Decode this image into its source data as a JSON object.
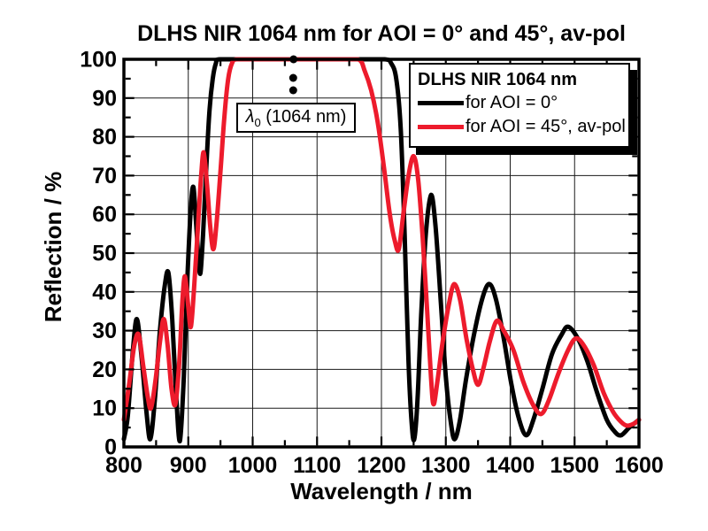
{
  "chart_data": {
    "type": "line",
    "title": "DLHS NIR 1064 nm for AOI = 0° and 45°, av-pol",
    "xlabel": "Wavelength / nm",
    "ylabel": "Reflection / %",
    "xlim": [
      800,
      1600
    ],
    "ylim": [
      0,
      100
    ],
    "xticks": [
      800,
      900,
      1000,
      1100,
      1200,
      1300,
      1400,
      1500,
      1600
    ],
    "yticks": [
      0,
      10,
      20,
      30,
      40,
      50,
      60,
      70,
      80,
      90,
      100
    ],
    "grid": true,
    "legend": {
      "title": "DLHS NIR 1064 nm",
      "position": "top-right",
      "entries": [
        {
          "label": "for AOI = 0°",
          "color": "#000000"
        },
        {
          "label": "for AOI = 45°, av-pol",
          "color": "#ed1b2c"
        }
      ]
    },
    "annotation": {
      "symbol": "λ",
      "subscript": "0",
      "text": " (1064 nm)",
      "center_wavelength_nm": 1064,
      "dots": [
        [
          1063.5,
          100
        ],
        [
          1063,
          95.2
        ],
        [
          1063,
          92.0
        ]
      ]
    },
    "series": [
      {
        "name": "for AOI = 0°",
        "color": "#000000",
        "points": [
          [
            800,
            2
          ],
          [
            806,
            8
          ],
          [
            814,
            25
          ],
          [
            820,
            33
          ],
          [
            827,
            24
          ],
          [
            835,
            9
          ],
          [
            841,
            2
          ],
          [
            848,
            12
          ],
          [
            856,
            30
          ],
          [
            863,
            41
          ],
          [
            869,
            45
          ],
          [
            875,
            33
          ],
          [
            881,
            14
          ],
          [
            887,
            1.5
          ],
          [
            893,
            18
          ],
          [
            899,
            45
          ],
          [
            904,
            62
          ],
          [
            908,
            67
          ],
          [
            912,
            58
          ],
          [
            916,
            48
          ],
          [
            919,
            45
          ],
          [
            923,
            55
          ],
          [
            928,
            72
          ],
          [
            933,
            87
          ],
          [
            938,
            95
          ],
          [
            943,
            99
          ],
          [
            949,
            100
          ],
          [
            1000,
            100
          ],
          [
            1080,
            100
          ],
          [
            1160,
            100
          ],
          [
            1205,
            100
          ],
          [
            1215,
            99
          ],
          [
            1223,
            95
          ],
          [
            1230,
            82
          ],
          [
            1236,
            55
          ],
          [
            1242,
            22
          ],
          [
            1247,
            6
          ],
          [
            1251,
            2
          ],
          [
            1256,
            12
          ],
          [
            1262,
            35
          ],
          [
            1269,
            55
          ],
          [
            1277,
            65
          ],
          [
            1284,
            57
          ],
          [
            1292,
            38
          ],
          [
            1300,
            18
          ],
          [
            1308,
            6
          ],
          [
            1314,
            2
          ],
          [
            1322,
            7
          ],
          [
            1332,
            18
          ],
          [
            1345,
            30
          ],
          [
            1358,
            39
          ],
          [
            1368,
            42
          ],
          [
            1378,
            38
          ],
          [
            1390,
            28
          ],
          [
            1402,
            16
          ],
          [
            1414,
            7
          ],
          [
            1425,
            3
          ],
          [
            1436,
            7
          ],
          [
            1450,
            15
          ],
          [
            1465,
            24
          ],
          [
            1480,
            29
          ],
          [
            1490,
            31
          ],
          [
            1505,
            28
          ],
          [
            1520,
            22
          ],
          [
            1535,
            14
          ],
          [
            1550,
            7
          ],
          [
            1562,
            4
          ],
          [
            1572,
            3
          ],
          [
            1585,
            5
          ],
          [
            1600,
            7
          ]
        ]
      },
      {
        "name": "for AOI = 45°, av-pol",
        "color": "#ed1b2c",
        "points": [
          [
            800,
            7
          ],
          [
            808,
            16
          ],
          [
            816,
            26
          ],
          [
            823,
            29
          ],
          [
            830,
            21
          ],
          [
            837,
            13
          ],
          [
            842,
            10
          ],
          [
            849,
            17
          ],
          [
            856,
            27
          ],
          [
            862,
            33
          ],
          [
            868,
            26
          ],
          [
            874,
            15
          ],
          [
            880,
            11
          ],
          [
            886,
            22
          ],
          [
            891,
            38
          ],
          [
            895,
            44
          ],
          [
            900,
            36
          ],
          [
            904,
            31
          ],
          [
            909,
            41
          ],
          [
            915,
            57
          ],
          [
            920,
            70
          ],
          [
            924,
            76
          ],
          [
            929,
            68
          ],
          [
            934,
            57
          ],
          [
            939,
            51
          ],
          [
            944,
            58
          ],
          [
            950,
            71
          ],
          [
            956,
            85
          ],
          [
            962,
            95
          ],
          [
            968,
            99
          ],
          [
            975,
            100
          ],
          [
            1000,
            100
          ],
          [
            1080,
            100
          ],
          [
            1130,
            100
          ],
          [
            1164,
            100
          ],
          [
            1174,
            97
          ],
          [
            1184,
            92
          ],
          [
            1194,
            84
          ],
          [
            1204,
            72
          ],
          [
            1213,
            60
          ],
          [
            1221,
            53
          ],
          [
            1227,
            51
          ],
          [
            1234,
            60
          ],
          [
            1242,
            70
          ],
          [
            1250,
            75
          ],
          [
            1257,
            69
          ],
          [
            1264,
            54
          ],
          [
            1271,
            35
          ],
          [
            1277,
            18
          ],
          [
            1281,
            11
          ],
          [
            1287,
            17
          ],
          [
            1295,
            27
          ],
          [
            1305,
            37
          ],
          [
            1313,
            42
          ],
          [
            1322,
            38
          ],
          [
            1332,
            28
          ],
          [
            1342,
            20
          ],
          [
            1350,
            16
          ],
          [
            1358,
            20
          ],
          [
            1368,
            27
          ],
          [
            1379,
            32.5
          ],
          [
            1390,
            30
          ],
          [
            1405,
            25
          ],
          [
            1420,
            17
          ],
          [
            1435,
            11
          ],
          [
            1448,
            8.5
          ],
          [
            1460,
            12
          ],
          [
            1475,
            19
          ],
          [
            1490,
            25
          ],
          [
            1502,
            28
          ],
          [
            1515,
            26
          ],
          [
            1530,
            21
          ],
          [
            1545,
            14
          ],
          [
            1560,
            9
          ],
          [
            1572,
            6.5
          ],
          [
            1581,
            5.5
          ],
          [
            1592,
            6
          ],
          [
            1600,
            7
          ]
        ]
      }
    ]
  }
}
